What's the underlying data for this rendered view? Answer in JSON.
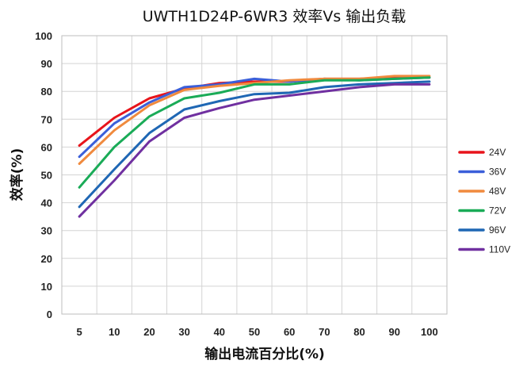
{
  "chart_data": {
    "type": "line",
    "title": "UWTH1D24P-6WR3 效率Vs 输出负载",
    "xlabel": "输出电流百分比(%)",
    "ylabel": "效率(%)",
    "categories": [
      "5",
      "10",
      "20",
      "30",
      "40",
      "50",
      "60",
      "70",
      "80",
      "90",
      "100"
    ],
    "ylim": [
      0,
      100
    ],
    "yticks": [
      "0",
      "10",
      "20",
      "30",
      "40",
      "50",
      "60",
      "70",
      "80",
      "90",
      "100"
    ],
    "grid": true,
    "legend_position": "right",
    "series": [
      {
        "name": "24V",
        "color": "#e8141b",
        "values": [
          60.5,
          70.5,
          77.5,
          81.0,
          83.0,
          83.5,
          83.5,
          84.5,
          84.5,
          85.0,
          85.0
        ]
      },
      {
        "name": "36V",
        "color": "#3b5fd9",
        "values": [
          56.5,
          68.5,
          76.0,
          81.5,
          82.5,
          84.5,
          83.5,
          84.5,
          84.0,
          84.5,
          85.0
        ]
      },
      {
        "name": "48V",
        "color": "#f08a3e",
        "values": [
          54.0,
          66.0,
          75.0,
          80.5,
          82.0,
          83.0,
          84.0,
          84.5,
          84.5,
          85.5,
          85.5
        ]
      },
      {
        "name": "72V",
        "color": "#1aab57",
        "values": [
          45.5,
          60.0,
          71.0,
          77.5,
          79.5,
          82.5,
          82.5,
          84.0,
          84.0,
          84.5,
          85.0
        ]
      },
      {
        "name": "96V",
        "color": "#1f67b4",
        "values": [
          38.5,
          52.0,
          65.0,
          73.5,
          76.5,
          79.0,
          79.5,
          81.5,
          82.5,
          83.0,
          83.5
        ]
      },
      {
        "name": "110V",
        "color": "#7030a0",
        "values": [
          35.0,
          48.0,
          62.0,
          70.5,
          74.0,
          77.0,
          78.5,
          80.0,
          81.5,
          82.5,
          82.5
        ]
      }
    ]
  }
}
